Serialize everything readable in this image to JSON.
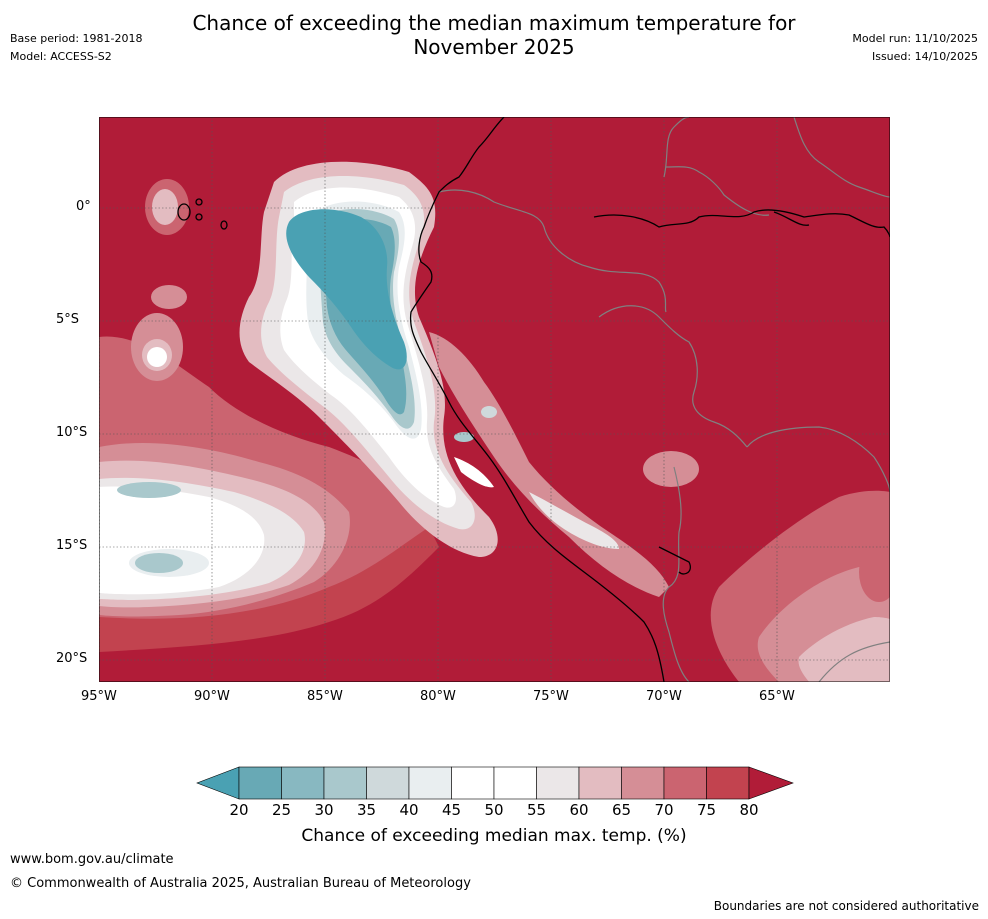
{
  "header": {
    "title_line1": "Chance of exceeding the median maximum temperature for",
    "title_line2": "November 2025",
    "base_period": "Base period: 1981-2018",
    "model": "Model: ACCESS-S2",
    "model_run": "Model run: 11/10/2025",
    "issued": "Issued: 14/10/2025"
  },
  "map": {
    "lat_labels": [
      "0°",
      "5°S",
      "10°S",
      "15°S",
      "20°S"
    ],
    "lon_labels": [
      "95°W",
      "90°W",
      "85°W",
      "80°W",
      "75°W",
      "70°W",
      "65°W"
    ],
    "dominant_category": "80+",
    "colors": {
      "c80": "#b11c38",
      "c75": "#c2434f",
      "c70": "#cb6470",
      "c65": "#d58e96",
      "c60": "#e3bcc1",
      "c55": "#ebe7e8",
      "c50": "#ffffff",
      "c45": "#e9eef0",
      "c40": "#cfd9db",
      "c35": "#a9c8cc",
      "c30": "#88b8c1",
      "c25": "#68a9b5",
      "c20": "#4aa1b3",
      "coast": "#000000",
      "border": "#808080"
    }
  },
  "colorbar": {
    "ticks": [
      "20",
      "25",
      "30",
      "35",
      "40",
      "45",
      "50",
      "55",
      "60",
      "65",
      "70",
      "75",
      "80"
    ],
    "label": "Chance of exceeding median max. temp. (%)",
    "colors": [
      "#4aa1b3",
      "#68a9b5",
      "#88b8c1",
      "#a9c8cc",
      "#cfd9db",
      "#e9eef0",
      "#ffffff",
      "#ffffff",
      "#ebe7e8",
      "#e3bcc1",
      "#d58e96",
      "#cb6470",
      "#c2434f",
      "#b11c38"
    ]
  },
  "footer": {
    "url": "www.bom.gov.au/climate",
    "copyright": "© Commonwealth of Australia 2025, Australian Bureau of Meteorology",
    "disclaimer": "Boundaries are not considered authoritative"
  }
}
